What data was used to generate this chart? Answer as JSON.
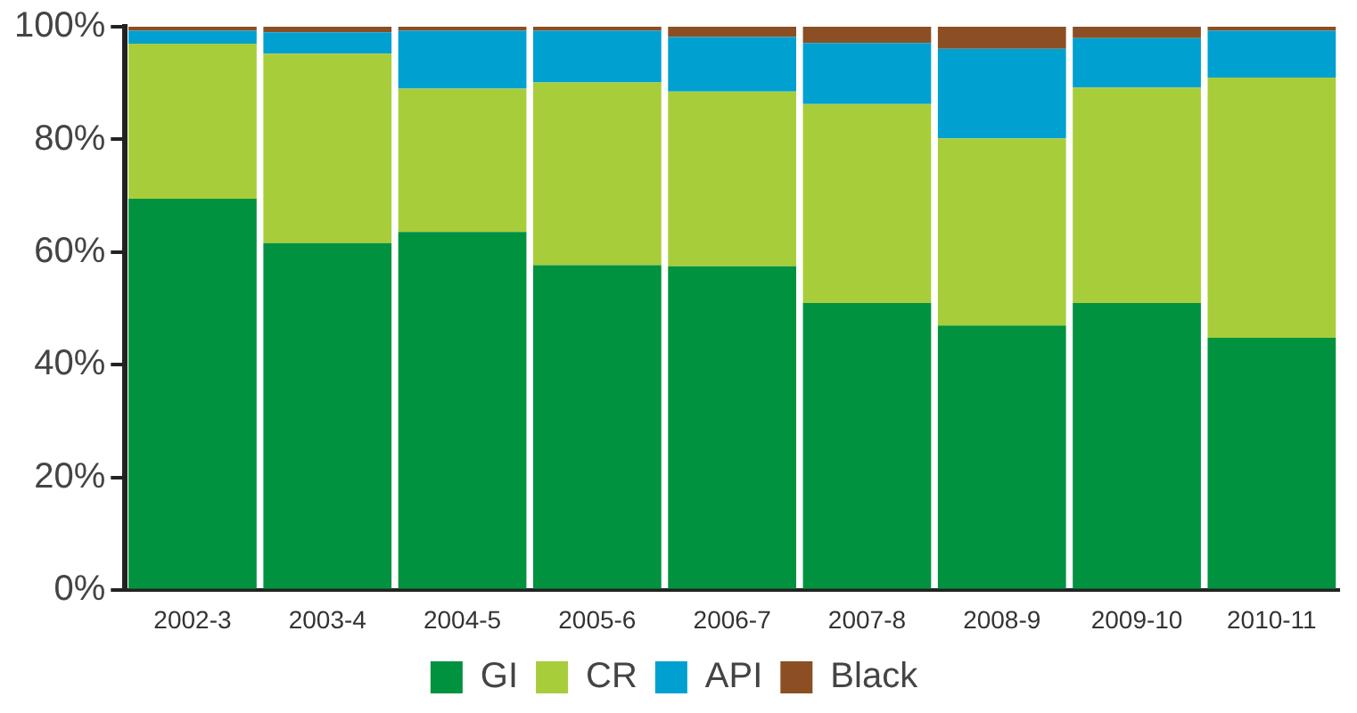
{
  "chart_data": {
    "type": "bar",
    "stacked": true,
    "categories": [
      "2002-3",
      "2003-4",
      "2004-5",
      "2005-6",
      "2006-7",
      "2007-8",
      "2008-9",
      "2009-10",
      "2010-11"
    ],
    "series": [
      {
        "name": "GI",
        "color": "#00923f",
        "values": [
          69.5,
          61.6,
          63.6,
          57.7,
          57.5,
          51,
          47,
          51,
          44.8
        ]
      },
      {
        "name": "CR",
        "color": "#a8cd3a",
        "values": [
          27.5,
          33.6,
          25.4,
          32.4,
          31,
          35.3,
          33.2,
          38.2,
          46.2
        ]
      },
      {
        "name": "API",
        "color": "#00a0d0",
        "values": [
          2.3,
          3.8,
          10.3,
          9.2,
          9.7,
          10.8,
          15.9,
          8.8,
          8.3
        ]
      },
      {
        "name": "Black",
        "color": "#8b4f23",
        "values": [
          0.7,
          1,
          0.7,
          0.7,
          1.8,
          2.9,
          3.9,
          2,
          0.7
        ]
      }
    ],
    "ylim": [
      0,
      100
    ],
    "yticks": [
      {
        "value": 0,
        "label": "0%"
      },
      {
        "value": 20,
        "label": "20%"
      },
      {
        "value": 40,
        "label": "40%"
      },
      {
        "value": 60,
        "label": "60%"
      },
      {
        "value": 80,
        "label": "80%"
      },
      {
        "value": 100,
        "label": "100%"
      }
    ],
    "grid": false,
    "legend": "bottom"
  }
}
